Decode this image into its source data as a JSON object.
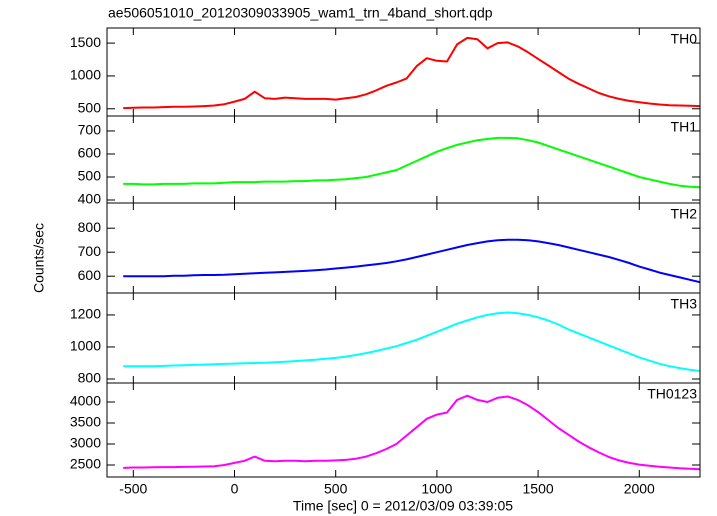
{
  "chart_data": [
    {
      "type": "line",
      "title": "ae506051010_20120309033905_wam1_trn_4band_short.qdp",
      "x": [
        -550,
        -500,
        -450,
        -400,
        -350,
        -300,
        -250,
        -200,
        -150,
        -100,
        -50,
        0,
        50,
        100,
        150,
        200,
        250,
        300,
        350,
        400,
        450,
        500,
        550,
        600,
        650,
        700,
        750,
        800,
        850,
        900,
        950,
        1000,
        1050,
        1100,
        1150,
        1200,
        1250,
        1300,
        1350,
        1400,
        1450,
        1500,
        1550,
        1600,
        1650,
        1700,
        1750,
        1800,
        1850,
        1900,
        1950,
        2000,
        2050,
        2100,
        2150,
        2200,
        2250,
        2300
      ],
      "series": [
        {
          "name": "TH0",
          "color": "#ff0000",
          "values": [
            510,
            515,
            520,
            520,
            525,
            530,
            530,
            535,
            540,
            550,
            570,
            610,
            650,
            760,
            660,
            650,
            670,
            660,
            650,
            650,
            650,
            640,
            660,
            680,
            720,
            780,
            850,
            900,
            960,
            1150,
            1270,
            1230,
            1220,
            1480,
            1580,
            1560,
            1420,
            1500,
            1510,
            1450,
            1360,
            1260,
            1160,
            1060,
            960,
            880,
            810,
            740,
            690,
            650,
            620,
            600,
            580,
            565,
            555,
            550,
            545,
            540
          ]
        }
      ],
      "xlim": [
        -630,
        2300
      ],
      "xticks": [
        -500,
        0,
        500,
        1000,
        1500,
        2000
      ],
      "ylim": [
        390,
        1730
      ],
      "yticks": [
        500,
        1000,
        1500
      ]
    },
    {
      "type": "line",
      "x": [
        -550,
        -500,
        -450,
        -400,
        -350,
        -300,
        -250,
        -200,
        -150,
        -100,
        -50,
        0,
        50,
        100,
        150,
        200,
        250,
        300,
        350,
        400,
        450,
        500,
        550,
        600,
        650,
        700,
        750,
        800,
        850,
        900,
        950,
        1000,
        1050,
        1100,
        1150,
        1200,
        1250,
        1300,
        1350,
        1400,
        1450,
        1500,
        1550,
        1600,
        1650,
        1700,
        1750,
        1800,
        1850,
        1900,
        1950,
        2000,
        2050,
        2100,
        2150,
        2200,
        2250,
        2300
      ],
      "series": [
        {
          "name": "TH1",
          "color": "#00ff00",
          "values": [
            470,
            470,
            468,
            468,
            470,
            470,
            470,
            472,
            472,
            472,
            475,
            478,
            478,
            478,
            480,
            480,
            480,
            482,
            482,
            485,
            485,
            488,
            490,
            495,
            500,
            510,
            520,
            530,
            550,
            570,
            590,
            610,
            625,
            640,
            650,
            660,
            665,
            670,
            670,
            668,
            660,
            650,
            635,
            620,
            605,
            590,
            575,
            560,
            545,
            530,
            515,
            500,
            490,
            480,
            470,
            462,
            458,
            455
          ]
        }
      ],
      "xlim": [
        -630,
        2300
      ],
      "xticks": [
        -500,
        0,
        500,
        1000,
        1500,
        2000
      ],
      "ylim": [
        387,
        765
      ],
      "yticks": [
        400,
        500,
        600,
        700
      ]
    },
    {
      "type": "line",
      "y_label": "Counts/sec",
      "x": [
        -550,
        -500,
        -450,
        -400,
        -350,
        -300,
        -250,
        -200,
        -150,
        -100,
        -50,
        0,
        50,
        100,
        150,
        200,
        250,
        300,
        350,
        400,
        450,
        500,
        550,
        600,
        650,
        700,
        750,
        800,
        850,
        900,
        950,
        1000,
        1050,
        1100,
        1150,
        1200,
        1250,
        1300,
        1350,
        1400,
        1450,
        1500,
        1550,
        1600,
        1650,
        1700,
        1750,
        1800,
        1850,
        1900,
        1950,
        2000,
        2050,
        2100,
        2150,
        2200,
        2250,
        2300
      ],
      "series": [
        {
          "name": "TH2",
          "color": "#0000ff",
          "values": [
            600,
            600,
            600,
            600,
            600,
            602,
            602,
            604,
            605,
            605,
            606,
            608,
            610,
            612,
            614,
            616,
            618,
            620,
            622,
            625,
            628,
            632,
            636,
            640,
            645,
            650,
            655,
            662,
            670,
            680,
            690,
            700,
            710,
            720,
            730,
            738,
            745,
            750,
            752,
            752,
            750,
            745,
            738,
            730,
            720,
            710,
            700,
            690,
            680,
            668,
            655,
            640,
            628,
            615,
            605,
            595,
            585,
            575
          ]
        }
      ],
      "xlim": [
        -630,
        2300
      ],
      "xticks": [
        -500,
        0,
        500,
        1000,
        1500,
        2000
      ],
      "ylim": [
        530,
        905
      ],
      "yticks": [
        600,
        700,
        800
      ]
    },
    {
      "type": "line",
      "x": [
        -550,
        -500,
        -450,
        -400,
        -350,
        -300,
        -250,
        -200,
        -150,
        -100,
        -50,
        0,
        50,
        100,
        150,
        200,
        250,
        300,
        350,
        400,
        450,
        500,
        550,
        600,
        650,
        700,
        750,
        800,
        850,
        900,
        950,
        1000,
        1050,
        1100,
        1150,
        1200,
        1250,
        1300,
        1350,
        1400,
        1450,
        1500,
        1550,
        1600,
        1650,
        1700,
        1750,
        1800,
        1850,
        1900,
        1950,
        2000,
        2050,
        2100,
        2150,
        2200,
        2250,
        2300
      ],
      "series": [
        {
          "name": "TH3",
          "color": "#00ffff",
          "values": [
            880,
            880,
            880,
            880,
            882,
            884,
            886,
            888,
            890,
            892,
            894,
            896,
            898,
            900,
            902,
            905,
            908,
            912,
            916,
            920,
            926,
            932,
            940,
            950,
            962,
            975,
            990,
            1005,
            1025,
            1045,
            1070,
            1095,
            1120,
            1145,
            1165,
            1185,
            1200,
            1210,
            1215,
            1210,
            1200,
            1185,
            1165,
            1140,
            1110,
            1085,
            1060,
            1035,
            1010,
            985,
            960,
            935,
            915,
            895,
            880,
            868,
            858,
            850
          ]
        }
      ],
      "xlim": [
        -630,
        2300
      ],
      "xticks": [
        -500,
        0,
        500,
        1000,
        1500,
        2000
      ],
      "ylim": [
        775,
        1337
      ],
      "yticks": [
        800,
        1000,
        1200
      ]
    },
    {
      "type": "line",
      "x_label": "Time [sec] 0 = 2012/03/09 03:39:05",
      "x": [
        -550,
        -500,
        -450,
        -400,
        -350,
        -300,
        -250,
        -200,
        -150,
        -100,
        -50,
        0,
        50,
        100,
        150,
        200,
        250,
        300,
        350,
        400,
        450,
        500,
        550,
        600,
        650,
        700,
        750,
        800,
        850,
        900,
        950,
        1000,
        1050,
        1100,
        1150,
        1200,
        1250,
        1300,
        1350,
        1400,
        1450,
        1500,
        1550,
        1600,
        1650,
        1700,
        1750,
        1800,
        1850,
        1900,
        1950,
        2000,
        2050,
        2100,
        2150,
        2200,
        2250,
        2300
      ],
      "series": [
        {
          "name": "TH0123",
          "color": "#ff00ff",
          "values": [
            2430,
            2440,
            2440,
            2445,
            2450,
            2450,
            2455,
            2460,
            2465,
            2470,
            2500,
            2550,
            2600,
            2700,
            2600,
            2590,
            2600,
            2600,
            2590,
            2600,
            2600,
            2610,
            2620,
            2650,
            2700,
            2780,
            2880,
            3000,
            3200,
            3400,
            3600,
            3700,
            3750,
            4050,
            4150,
            4050,
            4000,
            4100,
            4130,
            4050,
            3920,
            3760,
            3570,
            3380,
            3220,
            3060,
            2920,
            2800,
            2690,
            2610,
            2550,
            2510,
            2480,
            2460,
            2440,
            2420,
            2410,
            2400
          ]
        }
      ],
      "xlim": [
        -630,
        2300
      ],
      "xticks": [
        -500,
        0,
        500,
        1000,
        1500,
        2000
      ],
      "ylim": [
        2214,
        4452
      ],
      "yticks": [
        2500,
        3000,
        3500,
        4000
      ]
    }
  ]
}
